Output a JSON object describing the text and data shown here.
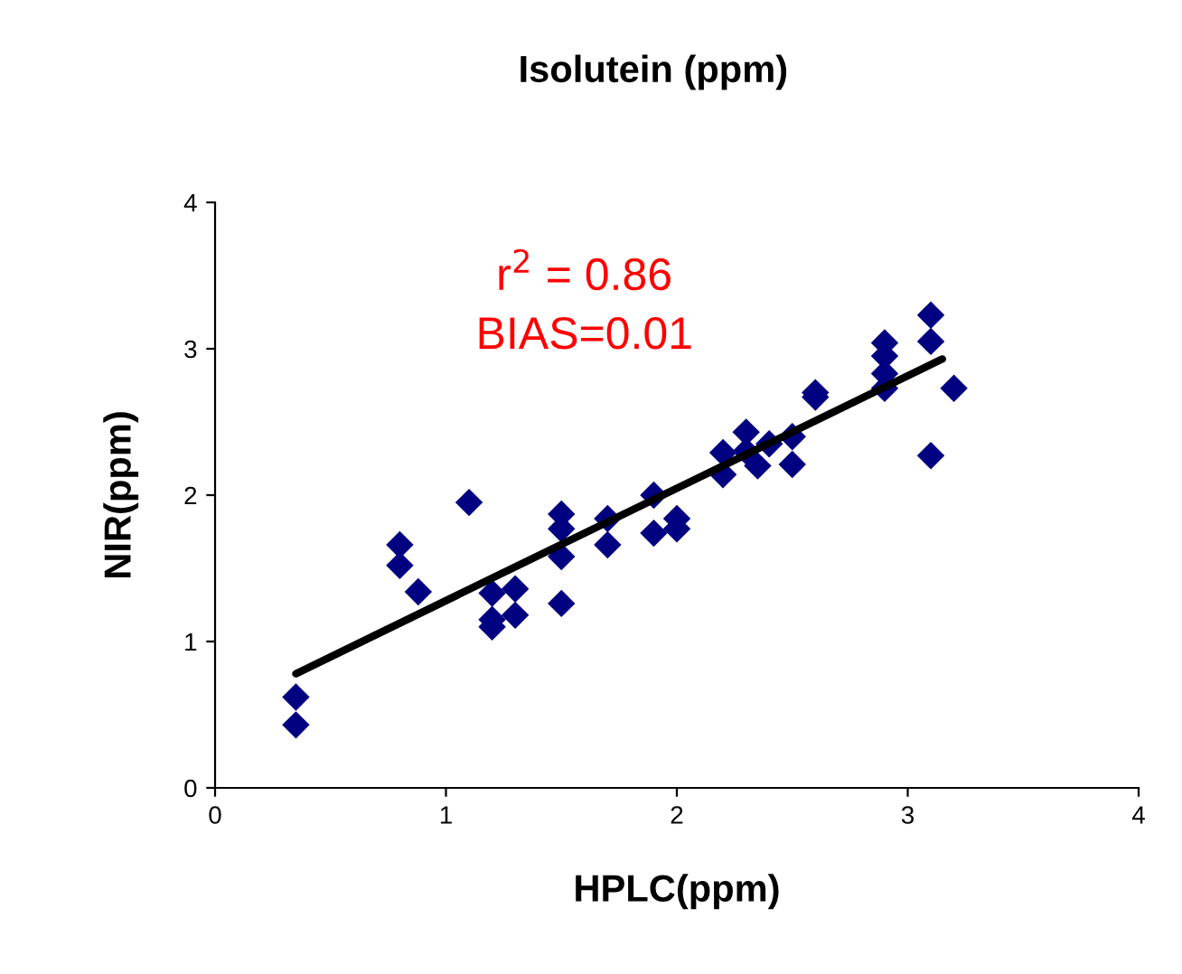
{
  "chart_data": {
    "type": "scatter",
    "title": "Isolutein (ppm)",
    "xlabel": "HPLC(ppm)",
    "ylabel": "NIR(ppm)",
    "xlim": [
      0,
      4
    ],
    "ylim": [
      0,
      4
    ],
    "xticks": [
      0,
      1,
      2,
      3,
      4
    ],
    "yticks": [
      0,
      1,
      2,
      3,
      4
    ],
    "grid": false,
    "legend": false,
    "annotations": [
      "r$^{2}$ = 0.86",
      "BIAS=0.01"
    ],
    "series": [
      {
        "marker": "diamond",
        "color": "#000080",
        "x": [
          0.35,
          0.35,
          0.8,
          0.8,
          0.88,
          1.1,
          1.2,
          1.2,
          1.2,
          1.3,
          1.3,
          1.5,
          1.5,
          1.5,
          1.5,
          1.7,
          1.7,
          1.9,
          1.9,
          2.0,
          2.0,
          2.2,
          2.2,
          2.3,
          2.35,
          2.3,
          2.4,
          2.5,
          2.5,
          2.6,
          2.6,
          2.9,
          2.9,
          2.9,
          2.9,
          3.1,
          3.1,
          3.2,
          3.1
        ],
        "values": [
          0.62,
          0.43,
          1.66,
          1.52,
          1.34,
          1.95,
          1.33,
          1.15,
          1.1,
          1.36,
          1.18,
          1.87,
          1.77,
          1.58,
          1.26,
          1.84,
          1.66,
          2.0,
          1.74,
          1.84,
          1.77,
          2.29,
          2.14,
          2.43,
          2.2,
          2.3,
          2.35,
          2.4,
          2.21,
          2.7,
          2.67,
          3.04,
          2.95,
          2.83,
          2.73,
          3.23,
          3.05,
          2.73,
          2.27
        ]
      },
      {
        "type": "line",
        "color": "#000000",
        "x": [
          0.35,
          3.15
        ],
        "values": [
          0.78,
          2.93
        ]
      }
    ]
  }
}
